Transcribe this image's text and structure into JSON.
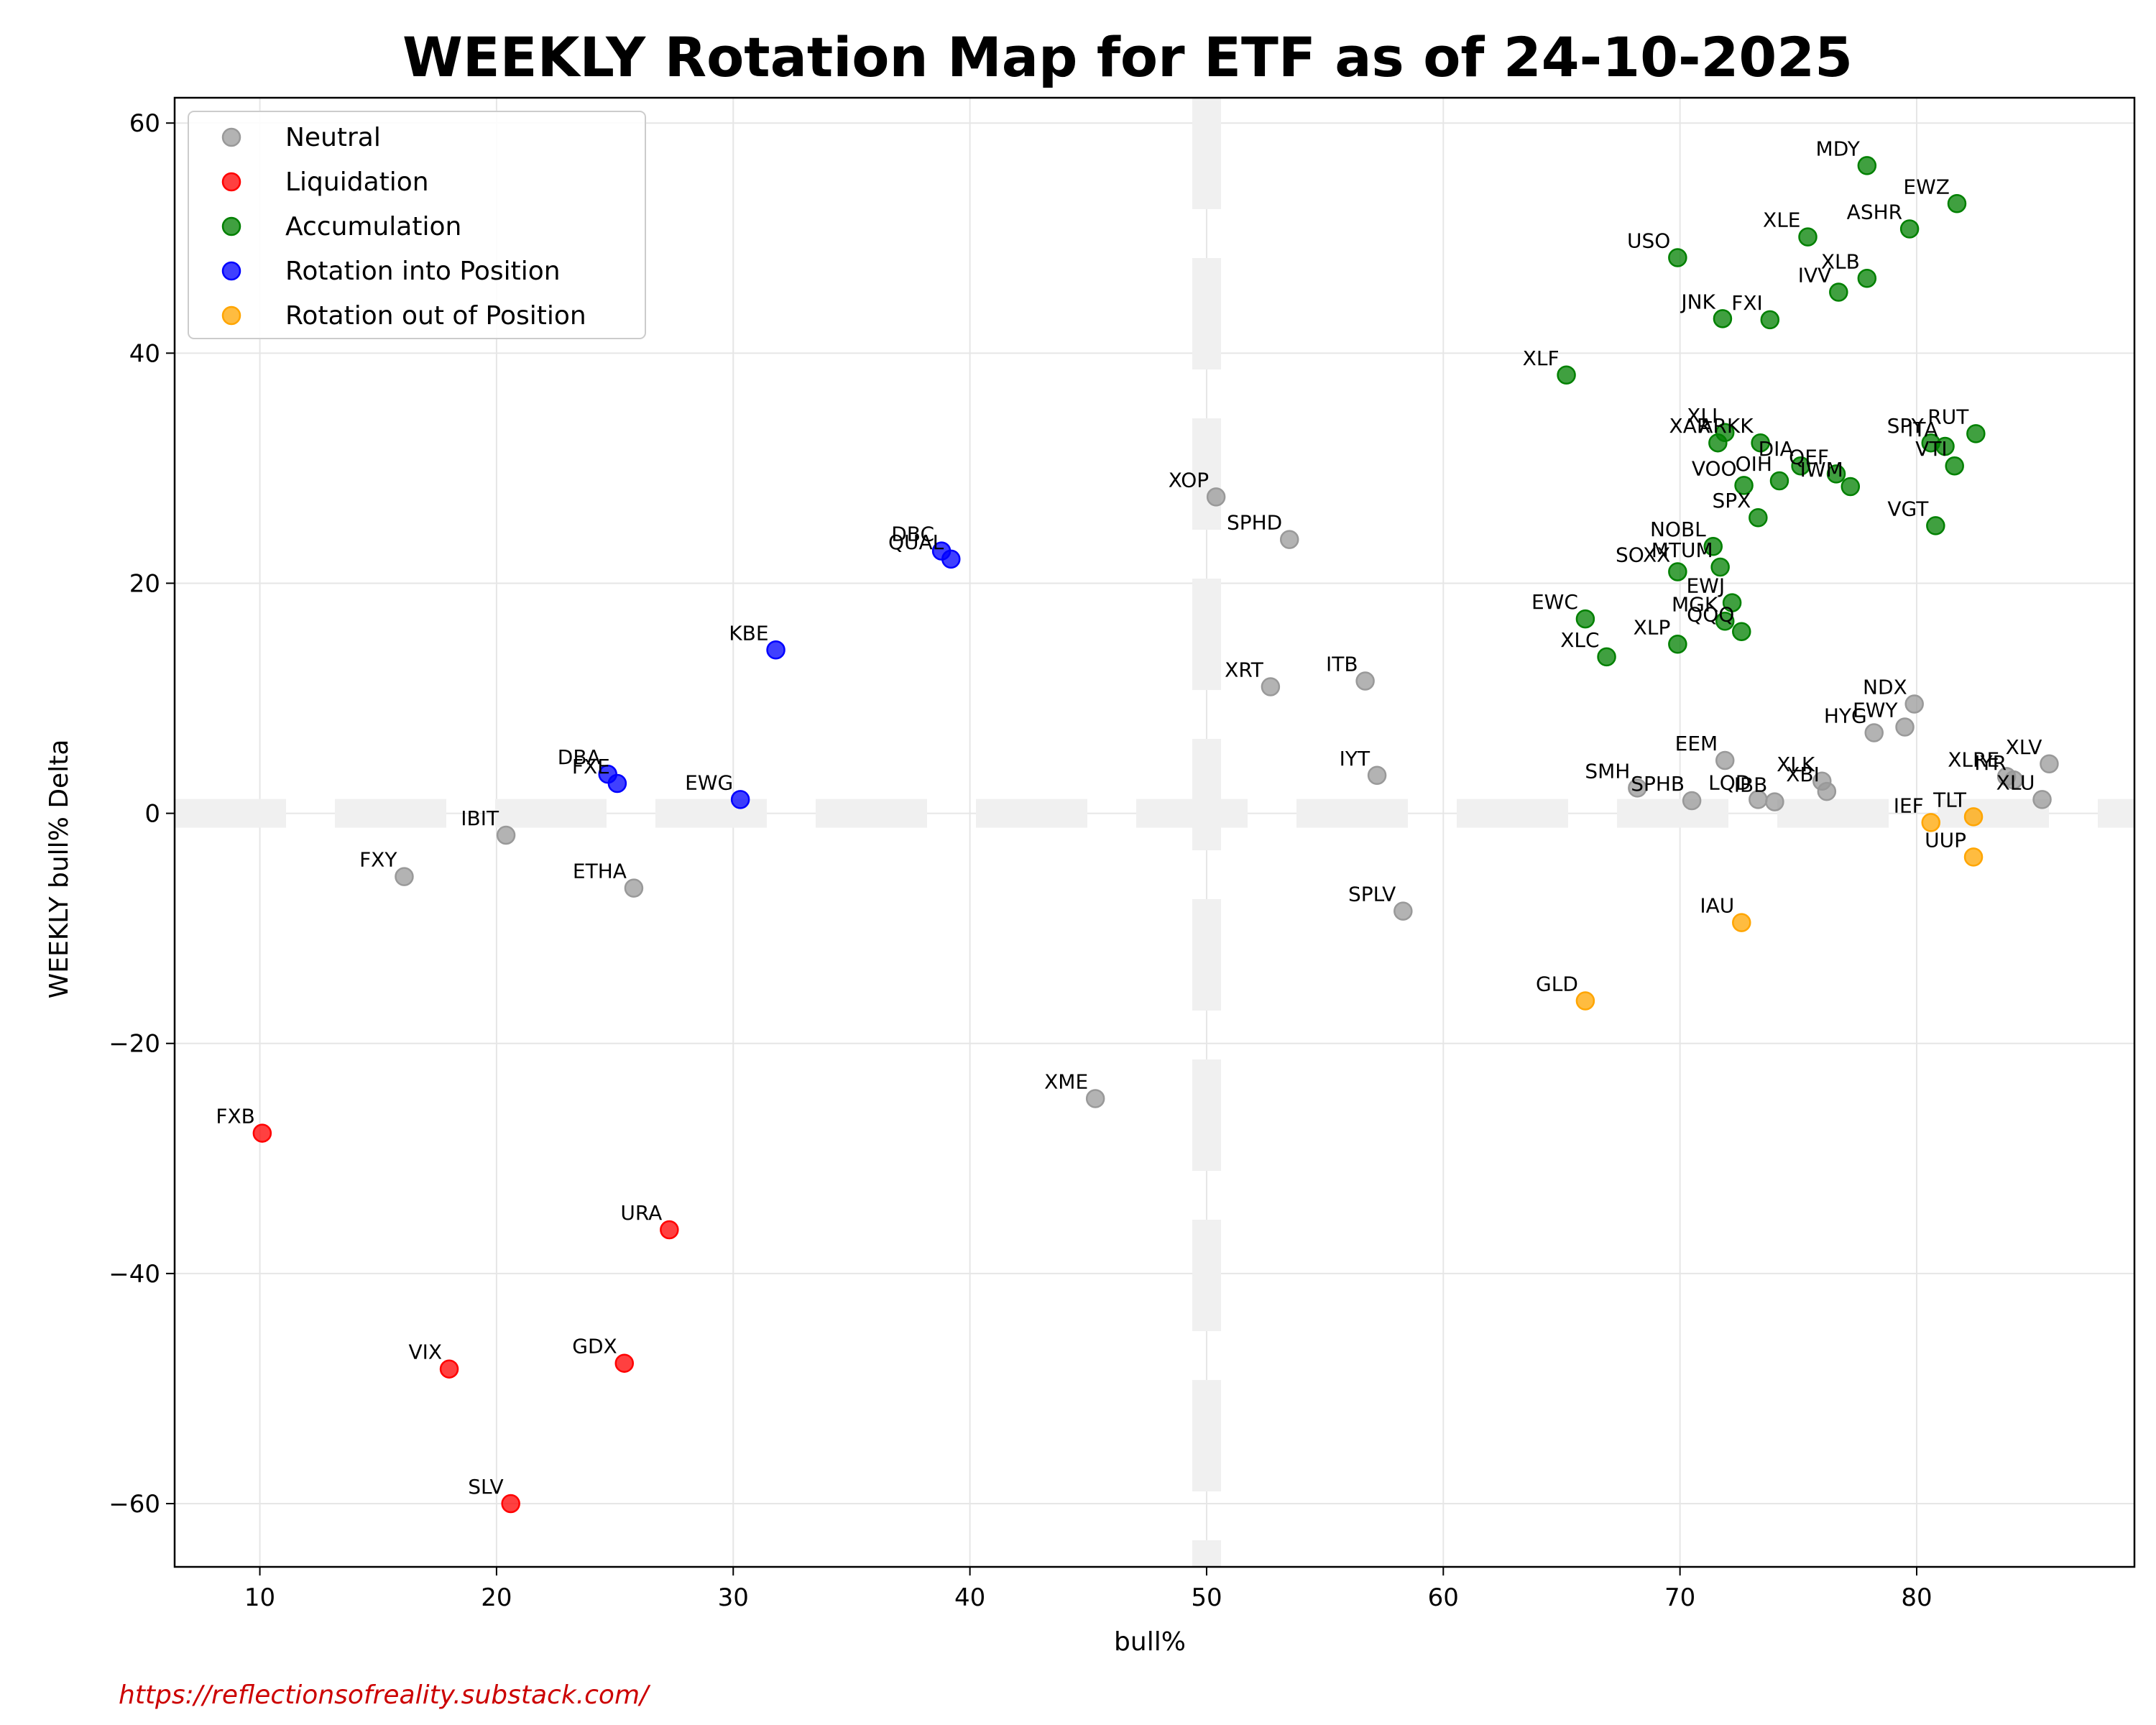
{
  "chart_data": {
    "type": "scatter",
    "title": "WEEKLY Rotation Map for ETF as of 24-10-2025",
    "xlabel": "bull%",
    "ylabel": "WEEKLY bull% Delta",
    "xlim": [
      6.4,
      89.2
    ],
    "ylim": [
      -65.5,
      62.2
    ],
    "xticks": [
      10,
      20,
      30,
      40,
      50,
      60,
      70,
      80
    ],
    "yticks": [
      -60,
      -40,
      -20,
      0,
      20,
      40,
      60
    ],
    "grid": true,
    "legend_position": "top-left",
    "reference_lines": {
      "x": 50,
      "y": 0
    },
    "source": "https://reflectionsofreality.substack.com/",
    "series": [
      {
        "name": "Neutral",
        "color": "#999999",
        "points": [
          {
            "label": "XOP",
            "x": 50.4,
            "y": 27.5
          },
          {
            "label": "SPHD",
            "x": 53.5,
            "y": 23.8
          },
          {
            "label": "XRT",
            "x": 52.7,
            "y": 11.0
          },
          {
            "label": "ITB",
            "x": 56.7,
            "y": 11.5
          },
          {
            "label": "IYT",
            "x": 57.2,
            "y": 3.3
          },
          {
            "label": "SPLV",
            "x": 58.3,
            "y": -8.5
          },
          {
            "label": "XME",
            "x": 45.3,
            "y": -24.8
          },
          {
            "label": "IBIT",
            "x": 20.4,
            "y": -1.9
          },
          {
            "label": "FXY",
            "x": 16.1,
            "y": -5.5
          },
          {
            "label": "ETHA",
            "x": 25.8,
            "y": -6.5
          },
          {
            "label": "EEM",
            "x": 71.9,
            "y": 4.6
          },
          {
            "label": "SMH",
            "x": 68.2,
            "y": 2.2
          },
          {
            "label": "SPHB",
            "x": 70.5,
            "y": 1.1
          },
          {
            "label": "LQD",
            "x": 73.3,
            "y": 1.2
          },
          {
            "label": "IBB",
            "x": 74.0,
            "y": 1.0
          },
          {
            "label": "XLK",
            "x": 76.0,
            "y": 2.8
          },
          {
            "label": "XBI",
            "x": 76.2,
            "y": 1.9
          },
          {
            "label": "NDX",
            "x": 79.9,
            "y": 9.5
          },
          {
            "label": "HYG",
            "x": 78.2,
            "y": 7.0
          },
          {
            "label": "EWY",
            "x": 79.5,
            "y": 7.5
          },
          {
            "label": "XLRE",
            "x": 83.8,
            "y": 3.2
          },
          {
            "label": "IYR",
            "x": 84.1,
            "y": 2.9
          },
          {
            "label": "XLV",
            "x": 85.6,
            "y": 4.3
          },
          {
            "label": "XLU",
            "x": 85.3,
            "y": 1.2
          }
        ]
      },
      {
        "name": "Liquidation",
        "color": "#ff0000",
        "points": [
          {
            "label": "FXB",
            "x": 10.1,
            "y": -27.8
          },
          {
            "label": "URA",
            "x": 27.3,
            "y": -36.2
          },
          {
            "label": "VIX",
            "x": 18.0,
            "y": -48.3
          },
          {
            "label": "GDX",
            "x": 25.4,
            "y": -47.8
          },
          {
            "label": "SLV",
            "x": 20.6,
            "y": -60.0
          }
        ]
      },
      {
        "name": "Accumulation",
        "color": "#008000",
        "points": [
          {
            "label": "MDY",
            "x": 77.9,
            "y": 56.3
          },
          {
            "label": "EWZ",
            "x": 81.7,
            "y": 53.0
          },
          {
            "label": "ASHR",
            "x": 79.7,
            "y": 50.8
          },
          {
            "label": "XLE",
            "x": 75.4,
            "y": 50.1
          },
          {
            "label": "USO",
            "x": 69.9,
            "y": 48.3
          },
          {
            "label": "XLB",
            "x": 77.9,
            "y": 46.5
          },
          {
            "label": "IVV",
            "x": 76.7,
            "y": 45.3
          },
          {
            "label": "JNK",
            "x": 71.8,
            "y": 43.0
          },
          {
            "label": "FXI",
            "x": 73.8,
            "y": 42.9
          },
          {
            "label": "XLF",
            "x": 65.2,
            "y": 38.1
          },
          {
            "label": "XLI",
            "x": 71.9,
            "y": 33.1
          },
          {
            "label": "XAR",
            "x": 71.6,
            "y": 32.2
          },
          {
            "label": "ARKK",
            "x": 73.4,
            "y": 32.2
          },
          {
            "label": "RUT",
            "x": 82.5,
            "y": 33.0
          },
          {
            "label": "SPY",
            "x": 80.6,
            "y": 32.2
          },
          {
            "label": "ITA",
            "x": 81.2,
            "y": 31.9
          },
          {
            "label": "VTI",
            "x": 81.6,
            "y": 30.2
          },
          {
            "label": "DIA",
            "x": 75.1,
            "y": 30.2
          },
          {
            "label": "QEF",
            "x": 76.6,
            "y": 29.5
          },
          {
            "label": "IWM",
            "x": 77.2,
            "y": 28.4
          },
          {
            "label": "OIH",
            "x": 74.2,
            "y": 28.9
          },
          {
            "label": "VOO",
            "x": 72.7,
            "y": 28.5
          },
          {
            "label": "SPX",
            "x": 73.3,
            "y": 25.7
          },
          {
            "label": "VGT",
            "x": 80.8,
            "y": 25.0
          },
          {
            "label": "NOBL",
            "x": 71.4,
            "y": 23.2
          },
          {
            "label": "MTUM",
            "x": 71.7,
            "y": 21.4
          },
          {
            "label": "SOXX",
            "x": 69.9,
            "y": 21.0
          },
          {
            "label": "EWJ",
            "x": 72.2,
            "y": 18.3
          },
          {
            "label": "EWC",
            "x": 66.0,
            "y": 16.9
          },
          {
            "label": "MGK",
            "x": 71.9,
            "y": 16.7
          },
          {
            "label": "QQQ",
            "x": 72.6,
            "y": 15.8
          },
          {
            "label": "XLP",
            "x": 69.9,
            "y": 14.7
          },
          {
            "label": "XLC",
            "x": 66.9,
            "y": 13.6
          }
        ]
      },
      {
        "name": "Rotation into Position",
        "color": "#0000ff",
        "points": [
          {
            "label": "DBC",
            "x": 38.8,
            "y": 22.8
          },
          {
            "label": "QUAL",
            "x": 39.2,
            "y": 22.1
          },
          {
            "label": "KBE",
            "x": 31.8,
            "y": 14.2
          },
          {
            "label": "DBA",
            "x": 24.7,
            "y": 3.4
          },
          {
            "label": "FXE",
            "x": 25.1,
            "y": 2.6
          },
          {
            "label": "EWG",
            "x": 30.3,
            "y": 1.2
          }
        ]
      },
      {
        "name": "Rotation out of Position",
        "color": "#ffa500",
        "points": [
          {
            "label": "IEF",
            "x": 80.6,
            "y": -0.8
          },
          {
            "label": "TLT",
            "x": 82.4,
            "y": -0.3
          },
          {
            "label": "UUP",
            "x": 82.4,
            "y": -3.8
          },
          {
            "label": "IAU",
            "x": 72.6,
            "y": -9.5
          },
          {
            "label": "GLD",
            "x": 66.0,
            "y": -16.3
          }
        ]
      }
    ]
  }
}
